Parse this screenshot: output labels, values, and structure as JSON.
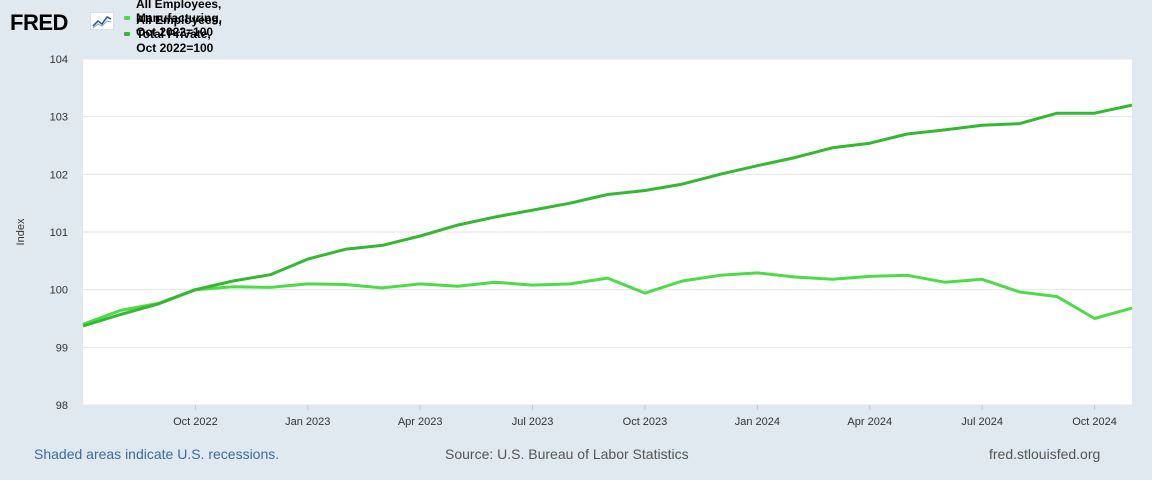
{
  "header": {
    "logo_text": "FRED",
    "logo_icon": "fred-trendline-icon"
  },
  "legend": [
    {
      "label": "All Employees, Manufacturing, Oct 2022=100",
      "color": "#4ddc48"
    },
    {
      "label": "All Employees, Total Private, Oct 2022=100",
      "color": "#35b831"
    }
  ],
  "footer": {
    "recessions_note": "Shaded areas indicate U.S. recessions.",
    "source": "Source: U.S. Bureau of Labor Statistics",
    "site": "fred.stlouisfed.org"
  },
  "chart_data": {
    "type": "line",
    "ylabel": "Index",
    "ylim": [
      98,
      104
    ],
    "yticks": [
      98,
      99,
      100,
      101,
      102,
      103,
      104
    ],
    "x": [
      "2022-07",
      "2022-08",
      "2022-09",
      "2022-10",
      "2022-11",
      "2022-12",
      "2023-01",
      "2023-02",
      "2023-03",
      "2023-04",
      "2023-05",
      "2023-06",
      "2023-07",
      "2023-08",
      "2023-09",
      "2023-10",
      "2023-11",
      "2023-12",
      "2024-01",
      "2024-02",
      "2024-03",
      "2024-04",
      "2024-05",
      "2024-06",
      "2024-07",
      "2024-08",
      "2024-09",
      "2024-10",
      "2024-11"
    ],
    "xticks": [
      {
        "index": 3,
        "label": "Oct 2022"
      },
      {
        "index": 6,
        "label": "Jan 2023"
      },
      {
        "index": 9,
        "label": "Apr 2023"
      },
      {
        "index": 12,
        "label": "Jul 2023"
      },
      {
        "index": 15,
        "label": "Oct 2023"
      },
      {
        "index": 18,
        "label": "Jan 2024"
      },
      {
        "index": 21,
        "label": "Apr 2024"
      },
      {
        "index": 24,
        "label": "Jul 2024"
      },
      {
        "index": 27,
        "label": "Oct 2024"
      }
    ],
    "series": [
      {
        "name": "All Employees, Manufacturing, Oct 2022=100",
        "color": "#4ddc48",
        "values": [
          99.4,
          99.64,
          99.76,
          100.0,
          100.05,
          100.04,
          100.1,
          100.09,
          100.03,
          100.1,
          100.06,
          100.13,
          100.08,
          100.1,
          100.2,
          99.94,
          100.15,
          100.25,
          100.29,
          100.22,
          100.18,
          100.23,
          100.25,
          100.13,
          100.18,
          99.96,
          99.88,
          99.5,
          99.68
        ]
      },
      {
        "name": "All Employees, Total Private, Oct 2022=100",
        "color": "#35b831",
        "values": [
          99.37,
          99.57,
          99.75,
          100.0,
          100.15,
          100.26,
          100.53,
          100.7,
          100.77,
          100.93,
          101.12,
          101.26,
          101.38,
          101.5,
          101.65,
          101.72,
          101.83,
          102.0,
          102.15,
          102.29,
          102.46,
          102.54,
          102.7,
          102.77,
          102.85,
          102.88,
          103.06,
          103.06,
          103.2
        ]
      }
    ]
  }
}
